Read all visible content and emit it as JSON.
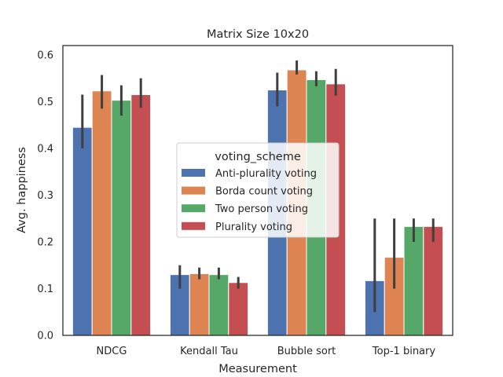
{
  "chart_data": {
    "type": "bar",
    "title": "Matrix Size 10x20",
    "xlabel": "Measurement",
    "ylabel": "Avg. happiness",
    "ylim": [
      0,
      0.62
    ],
    "yticks": [
      0.0,
      0.1,
      0.2,
      0.3,
      0.4,
      0.5,
      0.6
    ],
    "ytick_labels": [
      "0.0",
      "0.1",
      "0.2",
      "0.3",
      "0.4",
      "0.5",
      "0.6"
    ],
    "categories": [
      "NDCG",
      "Kendall Tau",
      "Bubble sort",
      "Top-1 binary"
    ],
    "legend": {
      "title": "voting_scheme",
      "placement": "center"
    },
    "grid": false,
    "series": [
      {
        "name": "Anti-plurality voting",
        "color": "#4c72b0",
        "values": [
          0.445,
          0.13,
          0.525,
          0.117
        ],
        "err_low": [
          0.4,
          0.1,
          0.49,
          0.05
        ],
        "err_high": [
          0.515,
          0.15,
          0.562,
          0.25
        ]
      },
      {
        "name": "Borda count voting",
        "color": "#dd8452",
        "values": [
          0.523,
          0.132,
          0.568,
          0.167
        ],
        "err_low": [
          0.485,
          0.12,
          0.558,
          0.1
        ],
        "err_high": [
          0.557,
          0.145,
          0.588,
          0.25
        ]
      },
      {
        "name": "Two person voting",
        "color": "#55a868",
        "values": [
          0.503,
          0.13,
          0.547,
          0.233
        ],
        "err_low": [
          0.47,
          0.12,
          0.533,
          0.2
        ],
        "err_high": [
          0.535,
          0.145,
          0.565,
          0.25
        ]
      },
      {
        "name": "Plurality voting",
        "color": "#c44e52",
        "values": [
          0.515,
          0.113,
          0.538,
          0.233
        ],
        "err_low": [
          0.487,
          0.1,
          0.513,
          0.2
        ],
        "err_high": [
          0.55,
          0.125,
          0.57,
          0.25
        ]
      }
    ]
  }
}
